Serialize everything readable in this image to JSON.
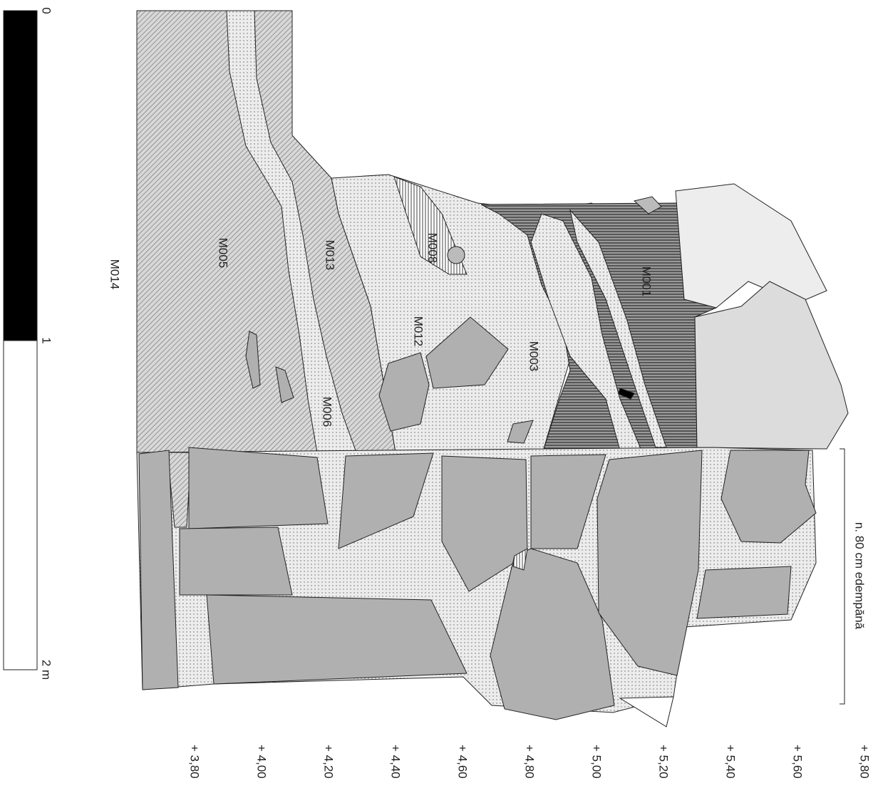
{
  "scale": {
    "labels": [
      "0",
      "1",
      "2 m"
    ]
  },
  "layers": [
    {
      "label": "M014"
    },
    {
      "label": "M005"
    },
    {
      "label": "M013"
    },
    {
      "label": "M008"
    },
    {
      "label": "M012"
    },
    {
      "label": "M003"
    },
    {
      "label": "M001"
    },
    {
      "label": "M006"
    }
  ],
  "note": "n. 80 cm edempănă",
  "elevations": [
    "+ 3,80",
    "+ 4,00",
    "+ 4,20",
    "+ 4,40",
    "+ 4,60",
    "+ 4,80",
    "+ 5,00",
    "+ 5,20",
    "+ 5,40",
    "+ 5,60",
    "+ 5,80"
  ]
}
